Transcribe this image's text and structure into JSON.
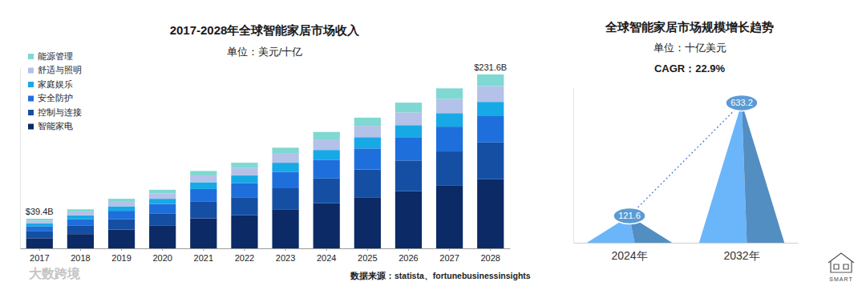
{
  "chart_data": [
    {
      "type": "bar",
      "title": "2017-2028年全球智能家居市场收入",
      "subtitle": "单位：美元/十亿",
      "categories": [
        "2017",
        "2018",
        "2019",
        "2020",
        "2021",
        "2022",
        "2023",
        "2024",
        "2025",
        "2026",
        "2027",
        "2028"
      ],
      "series": [
        {
          "name": "能源管理",
          "color": "#7fd8d2",
          "values": [
            2.5,
            3,
            4,
            5,
            6,
            7,
            8,
            10,
            11,
            13,
            14,
            15.6
          ]
        },
        {
          "name": "舒适与照明",
          "color": "#b4c1e8",
          "values": [
            3.5,
            5,
            6,
            7,
            9,
            10,
            12,
            14,
            15,
            17,
            19,
            21
          ]
        },
        {
          "name": "家庭娱乐",
          "color": "#17a9e6",
          "values": [
            3.9,
            5,
            6,
            7,
            9,
            10,
            12,
            13,
            15,
            16,
            18,
            19
          ]
        },
        {
          "name": "安全防护",
          "color": "#1e6fdc",
          "values": [
            7,
            9,
            11,
            13,
            17,
            19,
            22,
            25,
            28,
            31,
            33,
            35
          ]
        },
        {
          "name": "控制与连接",
          "color": "#154fa3",
          "values": [
            9,
            11,
            14,
            16,
            22,
            24,
            28,
            33,
            37,
            41,
            45,
            49
          ]
        },
        {
          "name": "智能家电",
          "color": "#0b2a66",
          "values": [
            13.5,
            19,
            25,
            30,
            40,
            44,
            52,
            60,
            68,
            76,
            84,
            92
          ]
        }
      ],
      "stacked": true,
      "ylim": [
        0,
        240
      ],
      "tick_labels": "x",
      "grid": false,
      "legend": "top-left",
      "annotations": [
        {
          "label": "$39.4B",
          "category": "2017",
          "value": 39.4
        },
        {
          "label": "$231.6B",
          "category": "2028",
          "value": 231.6
        }
      ],
      "source": "数据来源：statista、fortunebusinessinsights"
    },
    {
      "type": "pyramid",
      "title": "全球智能家居市场规模增长趋势",
      "subtitle": "单位：十亿美元",
      "annotations": [
        "CAGR：22.9%"
      ],
      "categories": [
        "2024年",
        "2032年"
      ],
      "values": [
        121.6,
        633.2
      ],
      "color": "#5b9bd5",
      "ylim": [
        0,
        700
      ],
      "tick_labels": "x",
      "data_labels": true
    }
  ],
  "watermark": "大数跨境",
  "logo": "SMART"
}
